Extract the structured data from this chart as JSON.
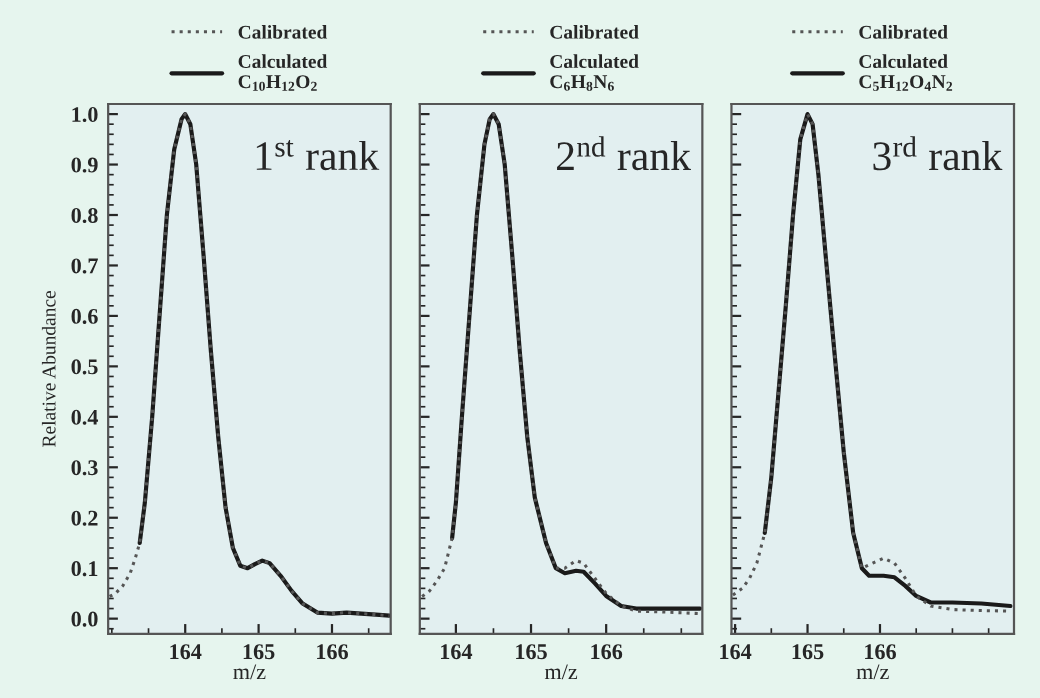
{
  "chart_data": [
    {
      "type": "line",
      "xlabel": "m/z",
      "ylabel": "Relative Abundance",
      "annotations": [
        "1$^{st}$ rank"
      ],
      "legend": "top",
      "grid": false,
      "xlim": [
        162.95,
        166.8
      ],
      "xticks": [
        164,
        165,
        166
      ],
      "ylim": [
        -0.03,
        1.02
      ],
      "yticks": [
        {
          "value": 0,
          "label": "0.0"
        },
        {
          "value": 0.1,
          "label": "0.1"
        },
        {
          "value": 0.2,
          "label": "0.2"
        },
        {
          "value": 0.3,
          "label": "0.3"
        },
        {
          "value": 0.4,
          "label": "0.4"
        },
        {
          "value": 0.5,
          "label": "0.5"
        },
        {
          "value": 0.6,
          "label": "0.6"
        },
        {
          "value": 0.7,
          "label": "0.7"
        },
        {
          "value": 0.8,
          "label": "0.8"
        },
        {
          "value": 0.9,
          "label": "0.9"
        },
        {
          "value": 1.0,
          "label": "1.0"
        }
      ],
      "series": [
        {
          "name": "Calibrated",
          "color": "#555555",
          "line_style": "dotted",
          "x": [
            162.97,
            163.05,
            163.15,
            163.25,
            163.32,
            163.38,
            163.45,
            163.55,
            163.65,
            163.75,
            163.85,
            163.95,
            164.0,
            164.07,
            164.15,
            164.25,
            164.35,
            164.45,
            164.55,
            164.65,
            164.75,
            164.85,
            164.95,
            165.05,
            165.15,
            165.3,
            165.45,
            165.6,
            165.8,
            166.0,
            166.2,
            166.4,
            166.6,
            166.78
          ],
          "values": [
            0.044,
            0.05,
            0.065,
            0.09,
            0.12,
            0.15,
            0.23,
            0.4,
            0.6,
            0.8,
            0.93,
            0.99,
            1.0,
            0.98,
            0.9,
            0.72,
            0.53,
            0.36,
            0.22,
            0.14,
            0.105,
            0.1,
            0.108,
            0.115,
            0.11,
            0.085,
            0.055,
            0.03,
            0.012,
            0.01,
            0.012,
            0.01,
            0.008,
            0.006
          ]
        },
        {
          "name": "Calculated\nC$_{10}$H$_{12}$O$_{2}$",
          "color": "#1a1a1a",
          "line_style": "solid",
          "x": [
            163.38,
            163.45,
            163.55,
            163.65,
            163.75,
            163.85,
            163.95,
            164.0,
            164.07,
            164.15,
            164.25,
            164.35,
            164.45,
            164.55,
            164.65,
            164.75,
            164.85,
            164.95,
            165.05,
            165.15,
            165.3,
            165.45,
            165.6,
            165.8,
            166.0,
            166.2,
            166.4,
            166.6,
            166.78
          ],
          "values": [
            0.15,
            0.23,
            0.4,
            0.6,
            0.8,
            0.93,
            0.99,
            1.0,
            0.98,
            0.9,
            0.72,
            0.53,
            0.36,
            0.22,
            0.14,
            0.105,
            0.1,
            0.108,
            0.115,
            0.11,
            0.085,
            0.055,
            0.03,
            0.012,
            0.01,
            0.012,
            0.01,
            0.008,
            0.006
          ]
        }
      ]
    },
    {
      "type": "line",
      "xlabel": "m/z",
      "annotations": [
        "2$^{nd}$ rank"
      ],
      "legend": "top",
      "grid": false,
      "tick_labels": "x",
      "xlim": [
        163.52,
        167.28
      ],
      "xticks": [
        164,
        165,
        166
      ],
      "ylim": [
        -0.03,
        1.02
      ],
      "series": [
        {
          "name": "Calibrated",
          "color": "#555555",
          "line_style": "dotted",
          "x": [
            163.55,
            163.65,
            163.75,
            163.85,
            163.95,
            164.0,
            164.08,
            164.18,
            164.28,
            164.38,
            164.45,
            164.5,
            164.57,
            164.65,
            164.75,
            164.85,
            164.95,
            165.05,
            165.2,
            165.33,
            165.45,
            165.6,
            165.7,
            165.85,
            166.0,
            166.2,
            166.4,
            166.8,
            167.25
          ],
          "values": [
            0.044,
            0.055,
            0.075,
            0.1,
            0.16,
            0.23,
            0.4,
            0.6,
            0.8,
            0.94,
            0.99,
            1.0,
            0.98,
            0.9,
            0.72,
            0.53,
            0.36,
            0.24,
            0.15,
            0.1,
            0.1,
            0.115,
            0.11,
            0.08,
            0.05,
            0.025,
            0.015,
            0.013,
            0.01
          ]
        },
        {
          "name": "Calculated\nC$_{6}$H$_{8}$N$_{6}$",
          "color": "#1a1a1a",
          "line_style": "solid",
          "x": [
            163.95,
            164.0,
            164.08,
            164.18,
            164.28,
            164.38,
            164.45,
            164.5,
            164.57,
            164.65,
            164.75,
            164.85,
            164.95,
            165.05,
            165.2,
            165.33,
            165.45,
            165.6,
            165.7,
            165.85,
            166.0,
            166.2,
            166.4,
            166.8,
            167.25
          ],
          "values": [
            0.16,
            0.23,
            0.4,
            0.6,
            0.8,
            0.94,
            0.99,
            1.0,
            0.98,
            0.9,
            0.72,
            0.53,
            0.36,
            0.24,
            0.15,
            0.1,
            0.09,
            0.095,
            0.093,
            0.07,
            0.045,
            0.025,
            0.02,
            0.02,
            0.02
          ]
        }
      ]
    },
    {
      "type": "line",
      "xlabel": "m/z",
      "annotations": [
        "3$^{rd}$ rank"
      ],
      "legend": "top",
      "grid": false,
      "tick_labels": "x",
      "xlim": [
        163.95,
        167.85
      ],
      "xticks": [
        164,
        165,
        166
      ],
      "ylim": [
        -0.03,
        1.02
      ],
      "series": [
        {
          "name": "Calibrated",
          "color": "#555555",
          "line_style": "dotted",
          "x": [
            163.97,
            164.1,
            164.2,
            164.3,
            164.41,
            164.5,
            164.6,
            164.7,
            164.8,
            164.9,
            165.0,
            165.07,
            165.15,
            165.25,
            165.37,
            165.5,
            165.63,
            165.75,
            165.9,
            166.05,
            166.2,
            166.35,
            166.5,
            166.7,
            167.0,
            167.4,
            167.8
          ],
          "values": [
            0.047,
            0.06,
            0.08,
            0.11,
            0.17,
            0.28,
            0.45,
            0.62,
            0.8,
            0.95,
            1.0,
            0.98,
            0.88,
            0.72,
            0.53,
            0.33,
            0.17,
            0.1,
            0.11,
            0.12,
            0.11,
            0.08,
            0.045,
            0.025,
            0.018,
            0.016,
            0.015
          ]
        },
        {
          "name": "Calculated\nC$_{5}$H$_{12}$O$_{4}$N$_{2}$",
          "color": "#1a1a1a",
          "line_style": "solid",
          "x": [
            164.41,
            164.5,
            164.6,
            164.7,
            164.8,
            164.9,
            165.0,
            165.07,
            165.15,
            165.25,
            165.37,
            165.5,
            165.63,
            165.75,
            165.85,
            166.05,
            166.2,
            166.35,
            166.5,
            166.7,
            167.0,
            167.4,
            167.8
          ],
          "values": [
            0.17,
            0.28,
            0.45,
            0.62,
            0.8,
            0.95,
            1.0,
            0.98,
            0.88,
            0.72,
            0.53,
            0.33,
            0.17,
            0.1,
            0.085,
            0.085,
            0.082,
            0.065,
            0.045,
            0.032,
            0.032,
            0.03,
            0.025
          ]
        }
      ]
    }
  ]
}
